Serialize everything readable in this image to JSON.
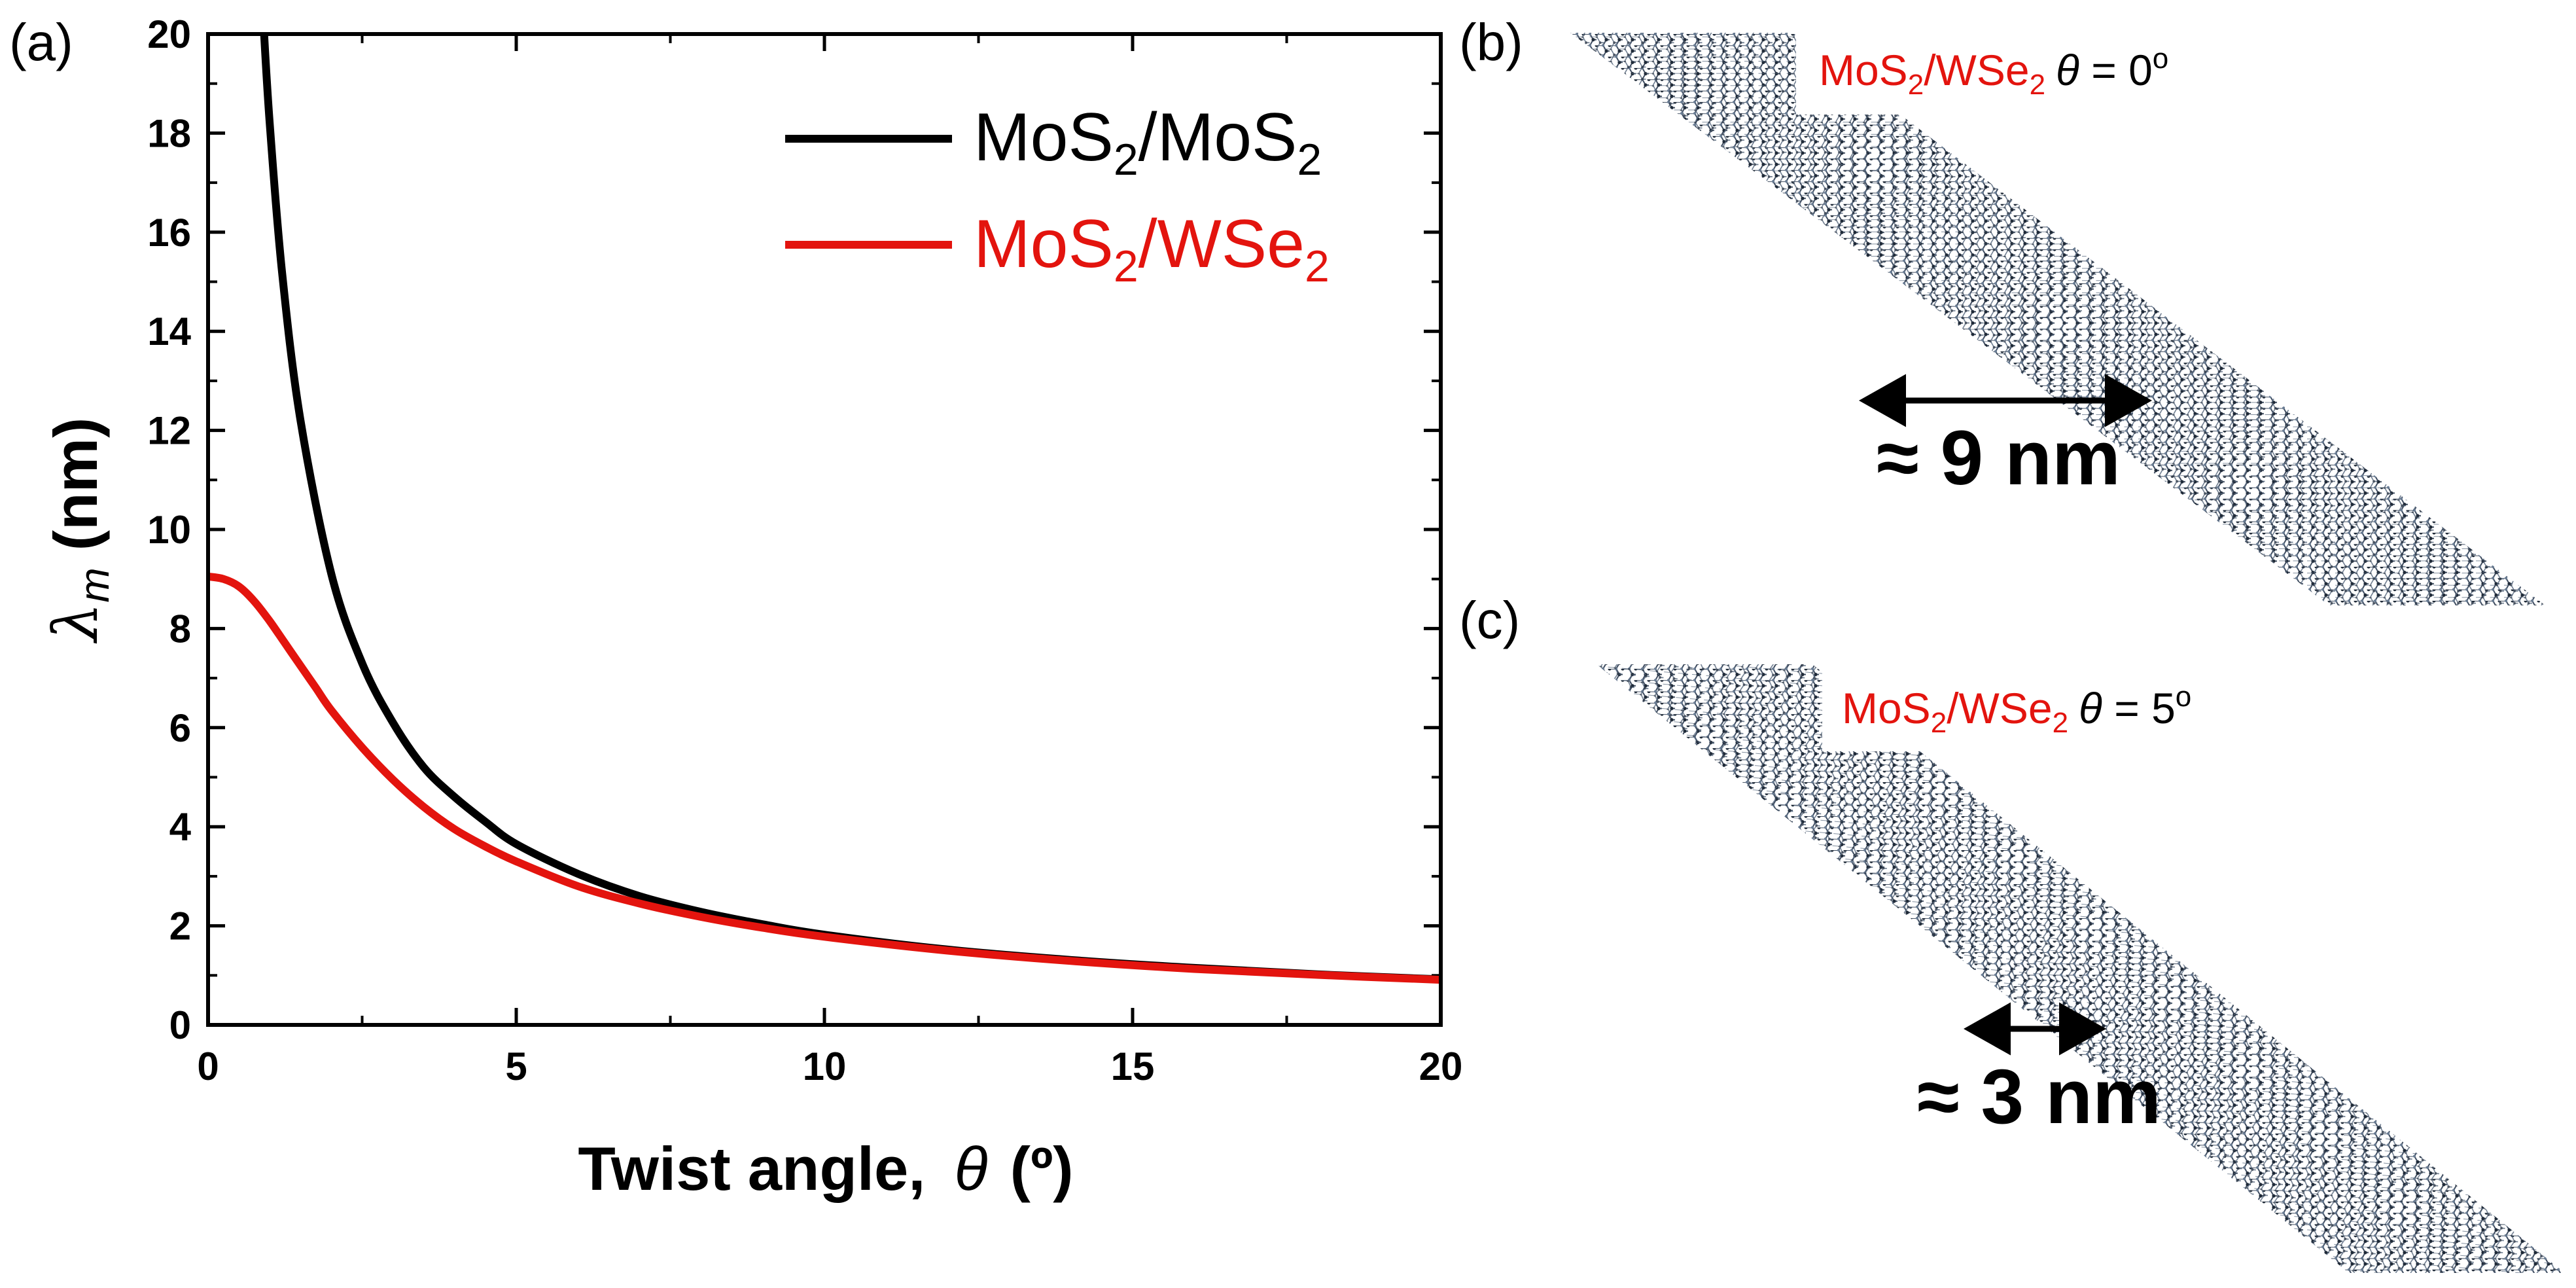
{
  "panels": {
    "a": "(a)",
    "b": "(b)",
    "c": "(c)"
  },
  "chart_data": {
    "type": "line",
    "x_axis": {
      "label_main": "Twist angle,",
      "label_symbol": "θ",
      "label_unit": "(º)",
      "range": [
        0,
        20
      ],
      "ticks": [
        0,
        5,
        10,
        15,
        20
      ],
      "tick_labels": [
        "0",
        "5",
        "10",
        "15",
        "20"
      ],
      "minor_ticks": [
        2.5,
        7.5,
        12.5,
        17.5
      ]
    },
    "y_axis": {
      "label_symbol": "λ",
      "label_sub": "m",
      "label_unit": "(nm)",
      "range": [
        0,
        20
      ],
      "ticks": [
        0,
        2,
        4,
        6,
        8,
        10,
        12,
        14,
        16,
        18,
        20
      ],
      "tick_labels": [
        "0",
        "2",
        "4",
        "6",
        "8",
        "10",
        "12",
        "14",
        "16",
        "18",
        "20"
      ],
      "minor_ticks": [
        1,
        3,
        5,
        7,
        9,
        11,
        13,
        15,
        17,
        19
      ]
    },
    "legend": {
      "position": "top-right"
    },
    "series": [
      {
        "name": "MoS2/MoS2",
        "legend_text": {
          "a": "MoS",
          "b": "2",
          "c": "/MoS",
          "d": "2"
        },
        "color": "#000000",
        "x": [
          0.9,
          1.0,
          1.2,
          1.5,
          2.0,
          2.5,
          3.0,
          3.5,
          4.0,
          4.5,
          5.0,
          6.0,
          7.0,
          8.0,
          9.0,
          10.0,
          12.0,
          14.0,
          16.0,
          18.0,
          20.0
        ],
        "y": [
          20.2,
          18.2,
          15.2,
          12.2,
          9.1,
          7.3,
          6.1,
          5.2,
          4.6,
          4.1,
          3.65,
          3.05,
          2.6,
          2.28,
          2.03,
          1.82,
          1.52,
          1.31,
          1.15,
          1.02,
          0.92
        ]
      },
      {
        "name": "MoS2/WSe2",
        "legend_text": {
          "a": "MoS",
          "b": "2",
          "c": "/WSe",
          "d": "2"
        },
        "color": "#e3140e",
        "x": [
          0,
          0.25,
          0.5,
          0.75,
          1.0,
          1.25,
          1.5,
          1.75,
          2.0,
          2.5,
          3.0,
          3.5,
          4.0,
          4.5,
          5.0,
          6.0,
          7.0,
          8.0,
          9.0,
          10.0,
          12.0,
          14.0,
          16.0,
          18.0,
          20.0
        ],
        "y": [
          9.05,
          9.0,
          8.85,
          8.55,
          8.15,
          7.7,
          7.25,
          6.8,
          6.35,
          5.6,
          4.95,
          4.4,
          3.95,
          3.6,
          3.3,
          2.8,
          2.45,
          2.18,
          1.96,
          1.78,
          1.5,
          1.29,
          1.13,
          1.01,
          0.91
        ]
      }
    ]
  },
  "insets": {
    "b": {
      "label": {
        "a": "MoS",
        "b": "2",
        "c": "/WSe",
        "d": "2",
        "sym": "θ",
        "eq": " = 0",
        "deg": "o"
      },
      "scale_text": "≈ 9 nm",
      "moire_period_nm": 9
    },
    "c": {
      "label": {
        "a": "MoS",
        "b": "2",
        "c": "/WSe",
        "d": "2",
        "sym": "θ",
        "eq": " = 5",
        "deg": "o"
      },
      "scale_text": "≈ 3 nm",
      "moire_period_nm": 3
    }
  },
  "colors": {
    "mos2_label": "#e3140e",
    "black": "#000000",
    "lattice": "#4a5a6e"
  }
}
